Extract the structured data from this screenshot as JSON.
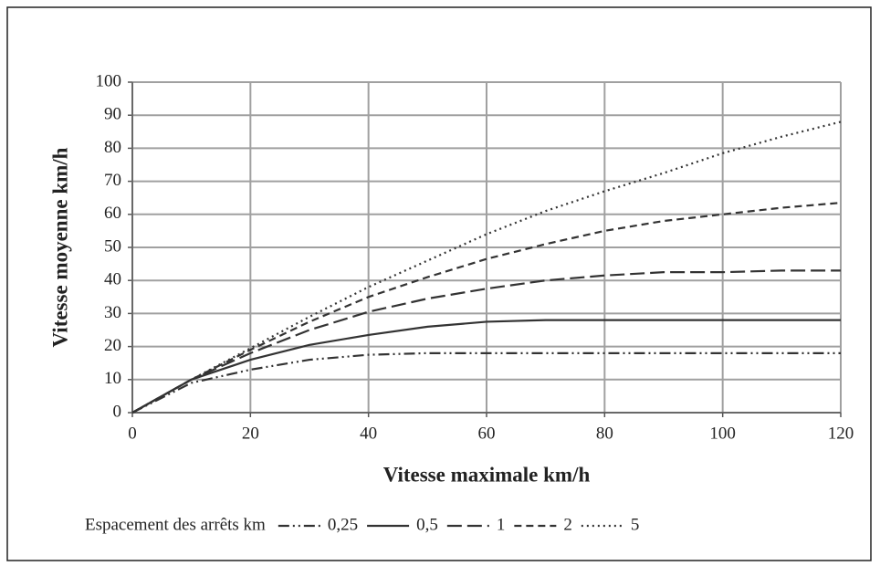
{
  "chart_data": {
    "type": "line",
    "x_label": "Vitesse maximale km/h",
    "y_label": "Vitesse moyenne km/h",
    "legend_title": "Espacement des arrêts  km",
    "x": [
      0,
      10,
      20,
      30,
      40,
      50,
      60,
      70,
      80,
      90,
      100,
      110,
      120
    ],
    "series": [
      {
        "name": "0,25",
        "color": "#333333",
        "dash": "dash-dot-dot",
        "values": [
          0,
          9,
          13,
          16,
          17.5,
          18,
          18,
          18,
          18,
          18,
          18,
          18,
          18
        ]
      },
      {
        "name": "0,5",
        "color": "#333333",
        "dash": "solid",
        "values": [
          0,
          10,
          16,
          20.5,
          23.5,
          26,
          27.5,
          28,
          28,
          28,
          28,
          28,
          28
        ]
      },
      {
        "name": "1",
        "color": "#333333",
        "dash": "long-dash",
        "values": [
          0,
          10,
          18,
          25,
          30.5,
          34.5,
          37.5,
          40,
          41.5,
          42.5,
          42.5,
          43,
          43
        ]
      },
      {
        "name": "2",
        "color": "#333333",
        "dash": "dash",
        "values": [
          0,
          10,
          19,
          27.5,
          35,
          41,
          46.5,
          51,
          55,
          58,
          60,
          62,
          63.5
        ]
      },
      {
        "name": "5",
        "color": "#333333",
        "dash": "dot",
        "values": [
          0,
          10,
          19.5,
          29,
          38,
          46,
          54,
          61,
          67,
          72.5,
          78.5,
          83.5,
          88
        ]
      }
    ],
    "xlim": [
      0,
      120
    ],
    "xticks": [
      0,
      20,
      40,
      60,
      80,
      100,
      120
    ],
    "ylim": [
      0,
      100
    ],
    "yticks": [
      0,
      10,
      20,
      30,
      40,
      50,
      60,
      70,
      80,
      90,
      100
    ],
    "grid": true,
    "legend": "bottom"
  }
}
